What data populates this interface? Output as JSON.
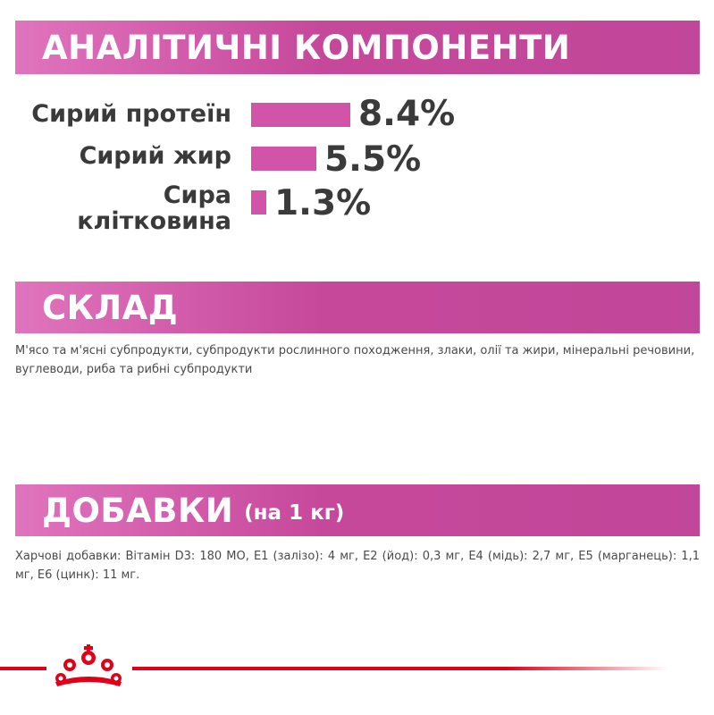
{
  "sections": {
    "analytic": {
      "title": "АНАЛІТИЧНІ КОМПОНЕНТИ"
    },
    "composition": {
      "title": "СКЛАД",
      "text": "М'ясо та м'ясні субпродукти, субпродукти рослинного походження, злаки, олії та жири, мінеральні речовини, вуглеводи, риба та рибні субпродукти"
    },
    "additives": {
      "title": "ДОБАВКИ",
      "subtitle": "(на 1 кг)",
      "text": "Харчові добавки: Вітамін D3: 180 МО, Е1 (залізо): 4 мг, Е2 (йод): 0,3 мг, Е4 (мідь): 2,7 мг, Е5 (марганець): 1,1 мг, Е6 (цинк): 11 мг."
    }
  },
  "components": [
    {
      "label": "Сирий протеїн",
      "value": "8.4%",
      "percent": 8.4
    },
    {
      "label": "Сирий жир",
      "value": "5.5%",
      "percent": 5.5
    },
    {
      "label_line1": "Сира",
      "label_line2": "клітковина",
      "value": "1.3%",
      "percent": 1.3
    }
  ],
  "colors": {
    "banner": "#c6489b",
    "bar": "#d154a8",
    "brand_red": "#e1001a"
  },
  "footer": {
    "logo": "crown-logo-icon"
  }
}
